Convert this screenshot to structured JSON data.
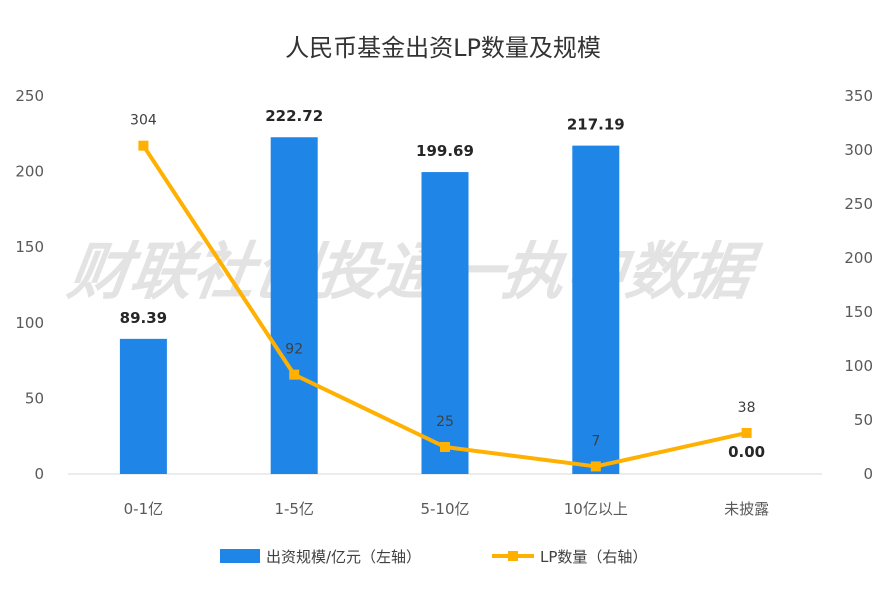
{
  "chart_data": {
    "type": "bar",
    "title": "人民币基金出资LP数量及规模",
    "watermark": "财联社创投通一执中数据",
    "categories": [
      "0-1亿",
      "1-5亿",
      "5-10亿",
      "10亿以上",
      "未披露"
    ],
    "series": [
      {
        "name": "出资规模/亿元（左轴）",
        "type": "bar",
        "axis": "left",
        "color": "#1f86e8",
        "values": [
          89.39,
          222.72,
          199.69,
          217.19,
          0.0
        ],
        "labels": [
          "89.39",
          "222.72",
          "199.69",
          "217.19",
          "0.00"
        ]
      },
      {
        "name": "LP数量（右轴）",
        "type": "line",
        "axis": "right",
        "color": "#ffb000",
        "values": [
          304,
          92,
          25,
          7,
          38
        ],
        "labels": [
          "304",
          "92",
          "25",
          "7",
          "38"
        ]
      }
    ],
    "left_axis": {
      "min": 0,
      "max": 250,
      "ticks": [
        "0",
        "50",
        "100",
        "150",
        "200",
        "250"
      ]
    },
    "right_axis": {
      "min": 0,
      "max": 350,
      "ticks": [
        "0",
        "50",
        "100",
        "150",
        "200",
        "250",
        "300",
        "350"
      ]
    },
    "grid": false,
    "legend_position": "bottom"
  }
}
